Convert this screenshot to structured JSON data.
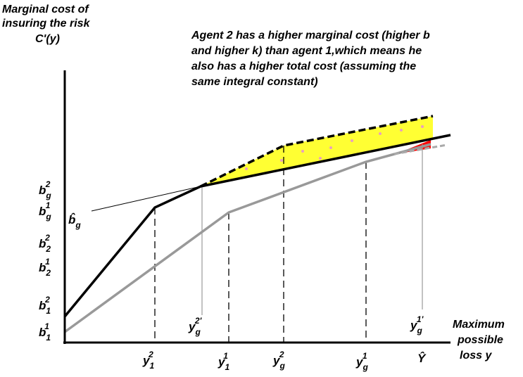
{
  "y_axis_title": [
    "Marginal cost of",
    "insuring the risk",
    "C'(y)"
  ],
  "annotation": [
    "Agent 2 has a higher marginal cost (higher b",
    "and higher k) than agent 1,which means he",
    "also has a higher total cost (assuming the",
    "same integral constant)"
  ],
  "x_axis_title": [
    "Maximum",
    "possible",
    "loss y"
  ],
  "y_labels": [
    {
      "base": "b",
      "sub": "g",
      "sup": "2"
    },
    {
      "base": "b",
      "sub": "g",
      "sup": "1"
    },
    {
      "base": "b̂",
      "sub": "g"
    },
    {
      "base": "b",
      "sub": "2",
      "sup": "2"
    },
    {
      "base": "b",
      "sub": "2",
      "sup": "1"
    },
    {
      "base": "b",
      "sub": "1",
      "sup": "2"
    },
    {
      "base": "b",
      "sub": "1",
      "sup": "1"
    }
  ],
  "x_labels": [
    {
      "base": "y",
      "sub": "1",
      "sup": "2"
    },
    {
      "base": "y",
      "sub": "1",
      "sup": "1"
    },
    {
      "base": "y",
      "sub": "g",
      "sup": "2"
    },
    {
      "base": "y",
      "sub": "g",
      "sup": "1"
    },
    {
      "base": "Ŷ"
    }
  ],
  "plot_labels": [
    {
      "base": "y",
      "sub": "g",
      "sup": "2'"
    },
    {
      "base": "y",
      "sub": "g",
      "sup": "1'"
    }
  ]
}
